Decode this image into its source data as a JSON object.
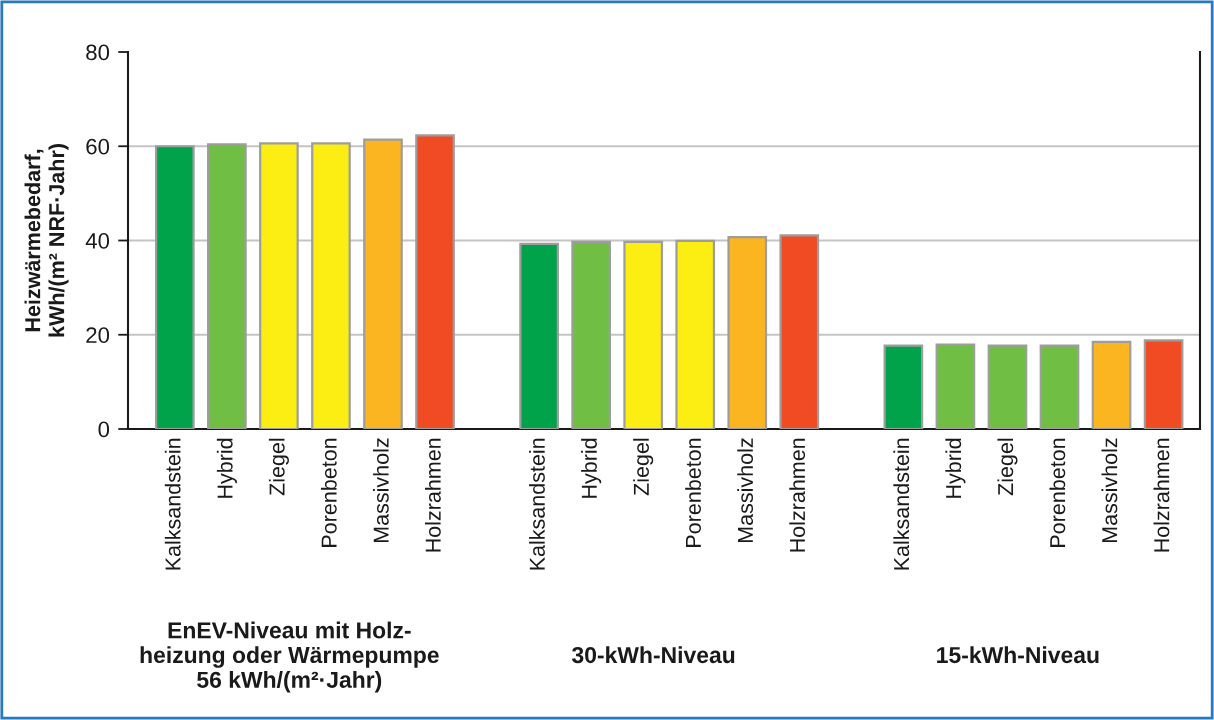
{
  "chart_data": {
    "type": "bar",
    "ylabel": "Heizwärmebedarf,\nkWh/(m² NRF·Jahr)",
    "categories": [
      "Kalksandstein",
      "Hybrid",
      "Ziegel",
      "Porenbeton",
      "Massivholz",
      "Holzrahmen",
      null,
      "Kalksandstein",
      "Hybrid",
      "Ziegel",
      "Porenbeton",
      "Massivholz",
      "Holzrahmen",
      null,
      "Kalksandstein",
      "Hybrid",
      "Ziegel",
      "Porenbeton",
      "Massivholz",
      "Holzrahmen"
    ],
    "values": [
      60.0,
      60.4,
      60.6,
      60.6,
      61.4,
      62.3,
      null,
      39.3,
      39.7,
      39.7,
      39.9,
      40.7,
      41.1,
      null,
      17.7,
      17.9,
      17.7,
      17.7,
      18.5,
      18.8
    ],
    "colors": [
      "#00a24a",
      "#70bf44",
      "#fcee12",
      "#fcee12",
      "#fbb520",
      "#f04b23",
      null,
      "#00a24a",
      "#70bf44",
      "#fcee12",
      "#fcee12",
      "#fbb520",
      "#f04b23",
      null,
      "#00a24a",
      "#70bf44",
      "#70bf44",
      "#70bf44",
      "#fbb520",
      "#f04b23"
    ],
    "ylim": [
      0,
      80
    ],
    "yticks": [
      0,
      20,
      40,
      60,
      80
    ],
    "grid": "y",
    "annotations": [
      "EnEV-Niveau mit Holz-\nheizung oder Wärmepumpe\n56 kWh/(m²·Jahr)",
      "30-kWh-Niveau",
      "15-kWh-Niveau"
    ]
  }
}
